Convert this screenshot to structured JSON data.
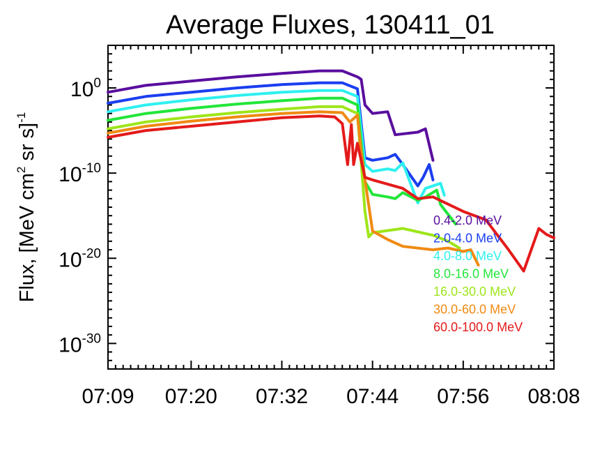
{
  "chart_data": {
    "type": "line",
    "title": "Average Fluxes, 130411_01",
    "ylabel": "Flux, [MeV cm2 sr s]-1",
    "ylabel_parts": {
      "a": "Flux, [MeV cm",
      "b": "2",
      "c": " sr s]",
      "d": "-1"
    },
    "xlabel": "",
    "y_scale": "log",
    "ylim": [
      1e-33,
      100000.0
    ],
    "xlim": [
      "07:09",
      "08:08"
    ],
    "x_ticks": [
      "07:09",
      "07:20",
      "07:32",
      "07:44",
      "07:56",
      "08:08"
    ],
    "y_ticks": [
      {
        "base": "10",
        "exp": "0",
        "value": 1
      },
      {
        "base": "10",
        "exp": "-10",
        "value": 1e-10
      },
      {
        "base": "10",
        "exp": "-20",
        "value": 1e-20
      },
      {
        "base": "10",
        "exp": "-30",
        "value": 1e-30
      }
    ],
    "legend_position": "right",
    "series": [
      {
        "name": "0.4-2.0 MeV",
        "color": "#5a0e9e",
        "x": [
          "07:09",
          "07:14",
          "07:20",
          "07:26",
          "07:32",
          "07:37",
          "07:40",
          "07:42",
          "07:42.5",
          "07:43",
          "07:44",
          "07:46",
          "07:47",
          "07:50",
          "07:51",
          "07:52"
        ],
        "y": [
          -0.5,
          0.3,
          0.8,
          1.3,
          1.7,
          2.0,
          2.0,
          1.3,
          1.0,
          -2.0,
          -3.0,
          -2.8,
          -5.5,
          -5.2,
          -4.8,
          -8.5
        ]
      },
      {
        "name": "2.0-4.0 MeV",
        "color": "#1a3ef0",
        "x": [
          "07:09",
          "07:14",
          "07:20",
          "07:26",
          "07:32",
          "07:37",
          "07:40",
          "07:42",
          "07:43",
          "07:44",
          "07:46",
          "07:47",
          "07:48",
          "07:50",
          "07:50.7",
          "07:51.5",
          "07:52"
        ],
        "y": [
          -1.8,
          -1.0,
          -0.5,
          0.0,
          0.4,
          0.6,
          0.6,
          -0.1,
          -8.2,
          -8.5,
          -8.2,
          -7.8,
          -9.0,
          -11.5,
          -10.5,
          -9.0,
          -10.8
        ]
      },
      {
        "name": "4.0-8.0 MeV",
        "color": "#2ff0f0",
        "x": [
          "07:09",
          "07:14",
          "07:20",
          "07:26",
          "07:32",
          "07:37",
          "07:40",
          "07:42",
          "07:43",
          "07:44",
          "07:46",
          "07:47",
          "07:48",
          "07:50",
          "07:51",
          "07:53",
          "07:53.5"
        ],
        "y": [
          -2.8,
          -2.0,
          -1.4,
          -0.9,
          -0.5,
          -0.3,
          -0.3,
          -1.0,
          -9.0,
          -9.8,
          -9.5,
          -9.7,
          -8.8,
          -13.5,
          -11.8,
          -11.2,
          -12.6
        ]
      },
      {
        "name": "8.0-16.0 MeV",
        "color": "#22e63a",
        "x": [
          "07:09",
          "07:14",
          "07:20",
          "07:26",
          "07:32",
          "07:37",
          "07:40",
          "07:42",
          "07:43",
          "07:44",
          "07:46",
          "07:47",
          "07:48",
          "07:50",
          "07:51",
          "07:52.5",
          "07:53",
          "07:55"
        ],
        "y": [
          -3.8,
          -3.0,
          -2.4,
          -1.9,
          -1.5,
          -1.2,
          -1.2,
          -2.0,
          -11.0,
          -12.5,
          -12.8,
          -13.0,
          -12.3,
          -13.2,
          -12.8,
          -12.0,
          -13.7,
          -16.0
        ]
      },
      {
        "name": "16.0-30.0 MeV",
        "color": "#9ee61a",
        "x": [
          "07:09",
          "07:14",
          "07:20",
          "07:26",
          "07:32",
          "07:37",
          "07:40",
          "07:42",
          "07:43",
          "07:43.5",
          "07:44",
          "07:48",
          "07:52",
          "07:54",
          "07:55.5"
        ],
        "y": [
          -4.8,
          -4.0,
          -3.4,
          -2.9,
          -2.5,
          -2.2,
          -2.2,
          -3.0,
          -14.5,
          -17.5,
          -17.0,
          -16.5,
          -17.3,
          -18.0,
          -18.8
        ]
      },
      {
        "name": "30.0-60.0 MeV",
        "color": "#f08a12",
        "x": [
          "07:09",
          "07:14",
          "07:20",
          "07:26",
          "07:32",
          "07:37",
          "07:40",
          "07:41",
          "07:42",
          "07:42.5",
          "07:43",
          "07:44",
          "07:46",
          "07:48",
          "07:52",
          "07:54",
          "07:56",
          "07:57",
          "07:58"
        ],
        "y": [
          -5.3,
          -4.5,
          -3.9,
          -3.4,
          -3.0,
          -2.8,
          -2.9,
          -4.0,
          -3.2,
          -7.5,
          -10.8,
          -16.8,
          -17.8,
          -18.6,
          -19.0,
          -18.8,
          -19.2,
          -19.0,
          -20.8
        ]
      },
      {
        "name": "60.0-100.0 MeV",
        "color": "#e41a1a",
        "x": [
          "07:09",
          "07:14",
          "07:20",
          "07:26",
          "07:32",
          "07:37",
          "07:39",
          "07:40",
          "07:40.7",
          "07:41.2",
          "07:41.5",
          "07:42",
          "07:43",
          "07:44",
          "07:48",
          "07:50",
          "07:52",
          "07:56",
          "07:59",
          "08:02",
          "08:04",
          "08:06",
          "08:07",
          "08:08"
        ],
        "y": [
          -5.8,
          -5.0,
          -4.5,
          -4.0,
          -3.5,
          -3.3,
          -3.4,
          -4.2,
          -9.0,
          -4.3,
          -9.0,
          -6.5,
          -10.5,
          -10.8,
          -11.8,
          -13.0,
          -12.8,
          -14.5,
          -15.5,
          -19.0,
          -21.5,
          -16.5,
          -17.2,
          -17.6
        ]
      }
    ]
  }
}
